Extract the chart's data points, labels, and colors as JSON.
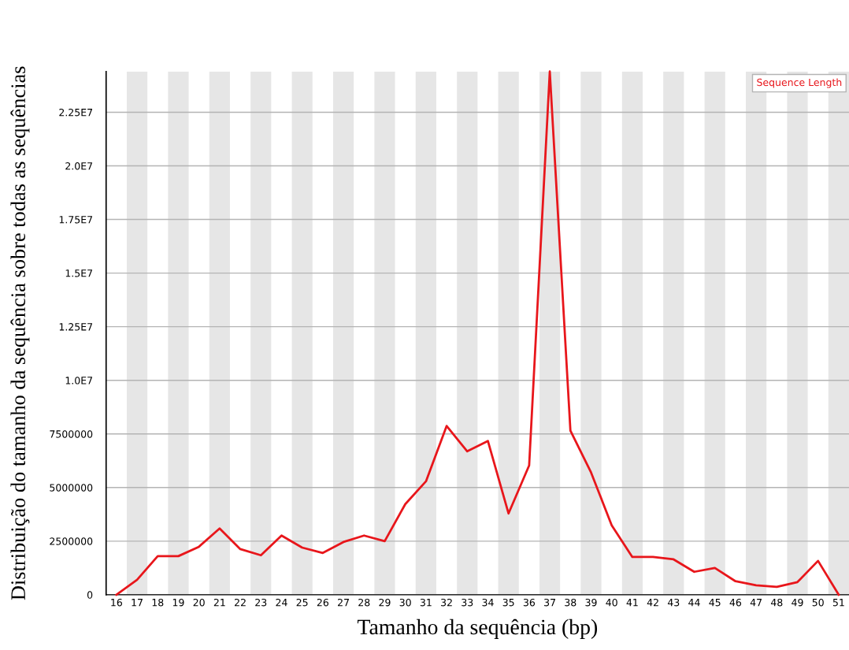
{
  "chart_data": {
    "type": "line",
    "xlabel": "Tamanho da sequência (bp)",
    "ylabel": "Distribuição do tamanho da sequência sobre todas as sequências",
    "categories": [
      "16",
      "17",
      "18",
      "19",
      "20",
      "21",
      "22",
      "23",
      "24",
      "25",
      "26",
      "27",
      "28",
      "29",
      "30",
      "31",
      "32",
      "33",
      "34",
      "35",
      "36",
      "37",
      "38",
      "39",
      "40",
      "41",
      "42",
      "43",
      "44",
      "45",
      "46",
      "47",
      "48",
      "49",
      "50",
      "51"
    ],
    "series": [
      {
        "name": "Sequence Length",
        "color": "#e8161b",
        "values": [
          0,
          700000,
          1800000,
          1800000,
          2240000,
          3090000,
          2130000,
          1840000,
          2760000,
          2200000,
          1950000,
          2460000,
          2760000,
          2500000,
          4230000,
          5290000,
          7870000,
          6690000,
          7170000,
          3790000,
          6030000,
          24400000,
          7650000,
          5700000,
          3240000,
          1760000,
          1760000,
          1650000,
          1070000,
          1250000,
          630000,
          440000,
          370000,
          590000,
          1580000,
          0
        ]
      }
    ],
    "ylim": [
      0,
      24400000
    ],
    "yticks": [
      0,
      2500000,
      5000000,
      7500000,
      {
        "value": 10000000,
        "label": "1.0E7"
      },
      {
        "value": 12500000,
        "label": "1.25E7"
      },
      {
        "value": 15000000,
        "label": "1.5E7"
      },
      {
        "value": 17500000,
        "label": "1.75E7"
      },
      {
        "value": 20000000,
        "label": "2.0E7"
      },
      {
        "value": 22500000,
        "label": "2.25E7"
      }
    ],
    "grid": "y",
    "legend": "top right",
    "marker": "none",
    "line_style": "solid",
    "bands": [
      {
        "axis": "x",
        "from": "17",
        "to": "17",
        "color": "#e6e6e6"
      },
      {
        "axis": "x",
        "from": "19",
        "to": "19",
        "color": "#e6e6e6"
      },
      {
        "axis": "x",
        "from": "21",
        "to": "21",
        "color": "#e6e6e6"
      },
      {
        "axis": "x",
        "from": "23",
        "to": "23",
        "color": "#e6e6e6"
      },
      {
        "axis": "x",
        "from": "25",
        "to": "25",
        "color": "#e6e6e6"
      },
      {
        "axis": "x",
        "from": "27",
        "to": "27",
        "color": "#e6e6e6"
      },
      {
        "axis": "x",
        "from": "29",
        "to": "29",
        "color": "#e6e6e6"
      },
      {
        "axis": "x",
        "from": "31",
        "to": "31",
        "color": "#e6e6e6"
      },
      {
        "axis": "x",
        "from": "33",
        "to": "33",
        "color": "#e6e6e6"
      },
      {
        "axis": "x",
        "from": "35",
        "to": "35",
        "color": "#e6e6e6"
      },
      {
        "axis": "x",
        "from": "37",
        "to": "37",
        "color": "#e6e6e6"
      },
      {
        "axis": "x",
        "from": "39",
        "to": "39",
        "color": "#e6e6e6"
      },
      {
        "axis": "x",
        "from": "41",
        "to": "41",
        "color": "#e6e6e6"
      },
      {
        "axis": "x",
        "from": "43",
        "to": "43",
        "color": "#e6e6e6"
      },
      {
        "axis": "x",
        "from": "45",
        "to": "45",
        "color": "#e6e6e6"
      },
      {
        "axis": "x",
        "from": "47",
        "to": "47",
        "color": "#e6e6e6"
      },
      {
        "axis": "x",
        "from": "49",
        "to": "49",
        "color": "#e6e6e6"
      },
      {
        "axis": "x",
        "from": "51",
        "to": "51",
        "color": "#e6e6e6"
      }
    ]
  }
}
